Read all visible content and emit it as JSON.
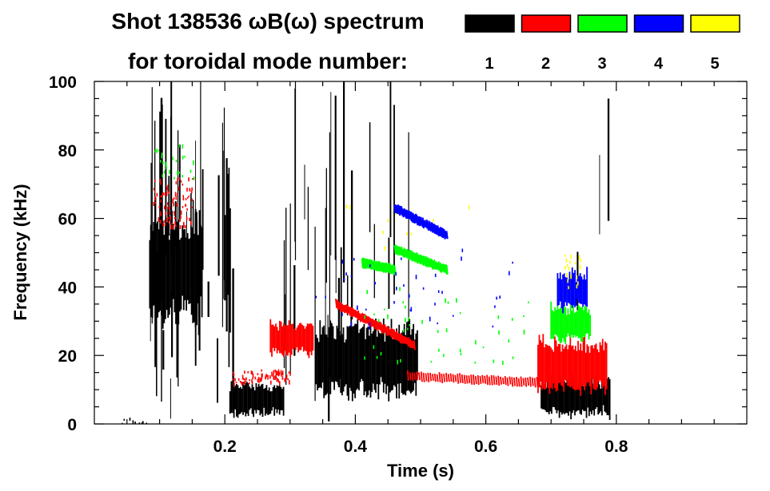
{
  "chart_data": {
    "type": "scatter",
    "title_line1": "Shot 138536 ωB(ω) spectrum",
    "title_line2": "for toroidal mode number:",
    "xlabel": "Time (s)",
    "ylabel": "Frequency (kHz)",
    "xlim": [
      0.0,
      1.0
    ],
    "ylim": [
      0,
      100
    ],
    "x_ticks": [
      0.2,
      0.4,
      0.6,
      0.8
    ],
    "x_tick_labels": [
      "0.2",
      "0.4",
      "0.6",
      "0.8"
    ],
    "y_ticks": [
      0,
      20,
      40,
      60,
      80,
      100
    ],
    "y_tick_labels": [
      "0",
      "20",
      "40",
      "60",
      "80",
      "100"
    ],
    "legend": [
      {
        "label": "1",
        "color": "#000000"
      },
      {
        "label": "2",
        "color": "#ff0000"
      },
      {
        "label": "3",
        "color": "#00ff00"
      },
      {
        "label": "4",
        "color": "#0000ff"
      },
      {
        "label": "5",
        "color": "#ffff00"
      }
    ],
    "series": [
      {
        "name": "n=1",
        "color": "#000000",
        "regions": [
          {
            "t": [
              0.085,
              0.165
            ],
            "f": [
              28,
              62
            ],
            "mode": "blob"
          },
          {
            "t": [
              0.085,
              0.215
            ],
            "f": [
              0,
              100
            ],
            "mode": "streaks",
            "count": 46
          },
          {
            "t": [
              0.208,
              0.29
            ],
            "f": [
              2,
              12
            ],
            "mode": "blob"
          },
          {
            "t": [
              0.34,
              0.495
            ],
            "f": [
              8,
              30
            ],
            "mode": "blob"
          },
          {
            "t": [
              0.29,
              0.49
            ],
            "f": [
              0,
              100
            ],
            "mode": "streaks",
            "count": 30
          },
          {
            "t": [
              0.685,
              0.79
            ],
            "f": [
              2,
              14
            ],
            "mode": "blob"
          },
          {
            "t": [
              0.74,
              0.79
            ],
            "f": [
              30,
              95
            ],
            "mode": "streaks",
            "count": 4
          },
          {
            "t": [
              0.04,
              0.08
            ],
            "f": [
              0,
              2
            ],
            "mode": "scatter",
            "count": 10
          }
        ]
      },
      {
        "name": "n=2",
        "color": "#ff0000",
        "regions": [
          {
            "t": [
              0.09,
              0.15
            ],
            "f": [
              58,
              72
            ],
            "mode": "scatter",
            "count": 90
          },
          {
            "t": [
              0.27,
              0.335
            ],
            "f": [
              20,
              30
            ],
            "mode": "blob"
          },
          {
            "t": [
              0.21,
              0.3
            ],
            "f": [
              12,
              16
            ],
            "mode": "scatter",
            "count": 80
          },
          {
            "t": [
              0.68,
              0.785
            ],
            "f": [
              9,
              25
            ],
            "mode": "blob"
          }
        ],
        "lines": [
          {
            "t": [
              0.37,
              0.49
            ],
            "f": [
              35,
              23
            ]
          },
          {
            "t": [
              0.48,
              0.685
            ],
            "f": [
              14,
              12
            ]
          }
        ]
      },
      {
        "name": "n=3",
        "color": "#00ff00",
        "regions": [
          {
            "t": [
              0.09,
              0.16
            ],
            "f": [
              72,
              82
            ],
            "mode": "scatter",
            "count": 25
          },
          {
            "t": [
              0.7,
              0.76
            ],
            "f": [
              24,
              35
            ],
            "mode": "blob"
          },
          {
            "t": [
              0.4,
              0.68
            ],
            "f": [
              18,
              40
            ],
            "mode": "scatter",
            "count": 45
          }
        ],
        "lines": [
          {
            "t": [
              0.46,
              0.54
            ],
            "f": [
              51,
              45
            ]
          },
          {
            "t": [
              0.41,
              0.46
            ],
            "f": [
              47,
              45
            ]
          }
        ]
      },
      {
        "name": "n=4",
        "color": "#0000ff",
        "regions": [
          {
            "t": [
              0.71,
              0.755
            ],
            "f": [
              33,
              45
            ],
            "mode": "blob"
          },
          {
            "t": [
              0.28,
              0.65
            ],
            "f": [
              28,
              52
            ],
            "mode": "scatter",
            "count": 40
          }
        ],
        "lines": [
          {
            "t": [
              0.46,
              0.54
            ],
            "f": [
              63,
              55
            ]
          }
        ]
      },
      {
        "name": "n=5",
        "color": "#ffff00",
        "regions": [
          {
            "t": [
              0.72,
              0.745
            ],
            "f": [
              40,
              50
            ],
            "mode": "scatter",
            "count": 18
          },
          {
            "t": [
              0.38,
              0.67
            ],
            "f": [
              45,
              64
            ],
            "mode": "scatter",
            "count": 10
          }
        ]
      }
    ]
  }
}
